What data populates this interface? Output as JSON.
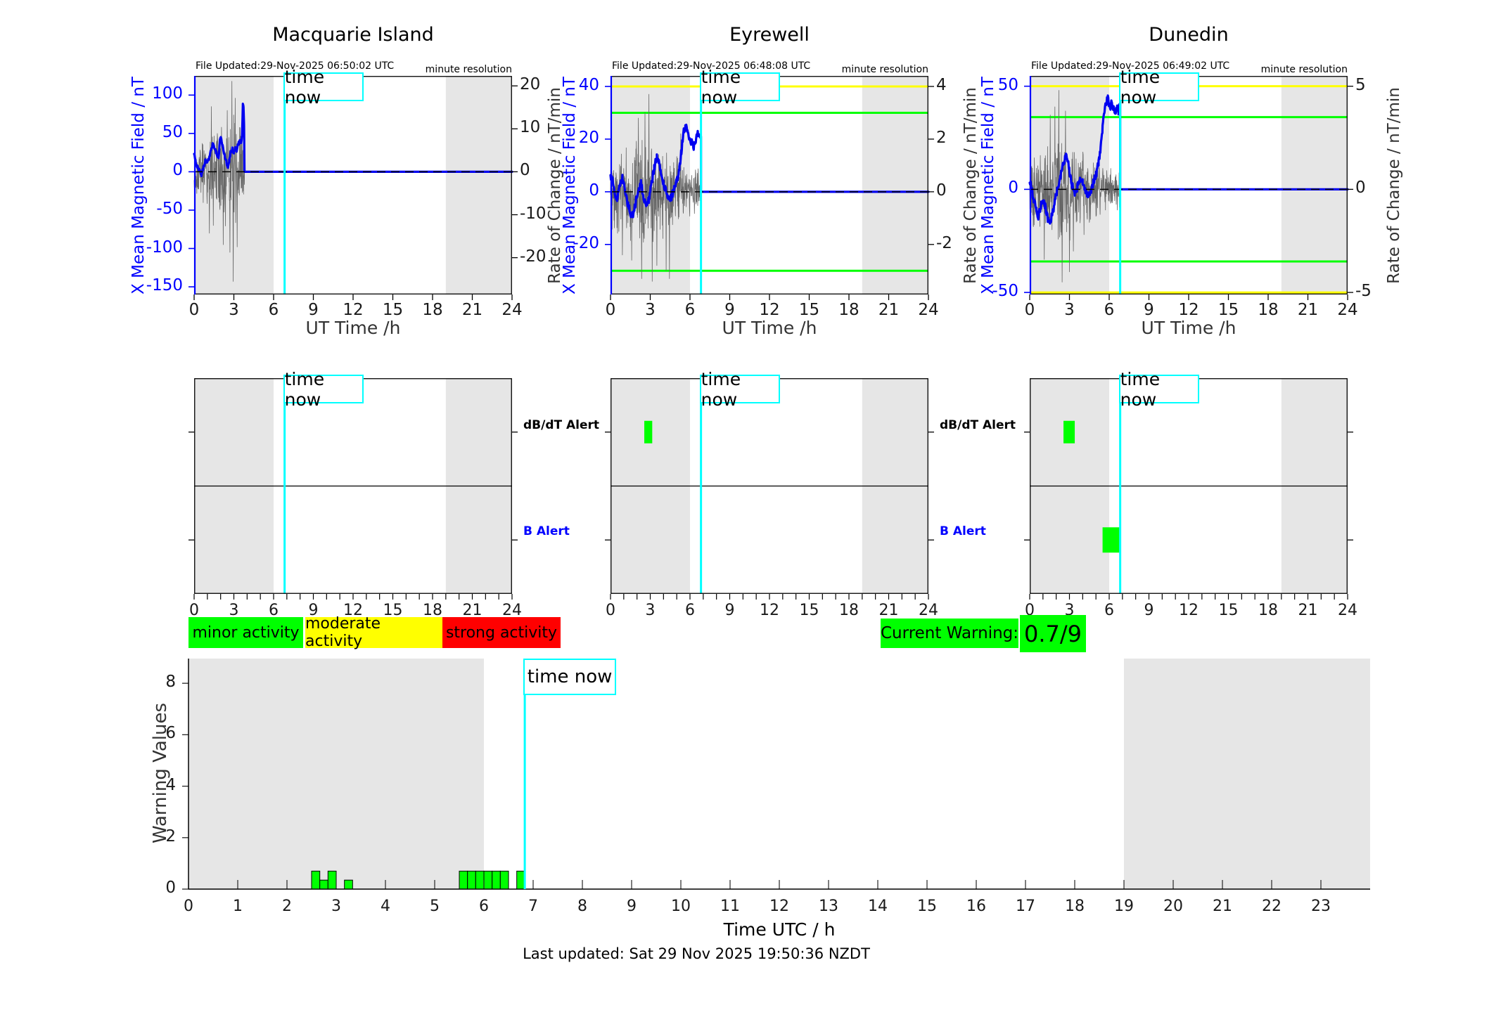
{
  "page": {
    "last_updated": "Last updated: Sat 29 Nov 2025 19:50:36 NZDT"
  },
  "time_now_label": "time now",
  "alert_labels": {
    "dbdt": "dB/dT Alert",
    "b": "B Alert"
  },
  "activity_legend": [
    {
      "label": "minor activity",
      "color": "#00ff00"
    },
    {
      "label": "moderate activity",
      "color": "#ffff00"
    },
    {
      "label": "strong activity",
      "color": "#ff0000"
    }
  ],
  "current_warning": {
    "label": "Current Warning:",
    "value": "0.7/9"
  },
  "colors": {
    "blue": "#0000ff",
    "curve": "#0000f0",
    "noise": "#666666",
    "shade": "#e6e6e6",
    "cyan": "#00ffff",
    "green": "#00ff00",
    "yellow": "#ffff00",
    "red": "#ff0000",
    "tick": "#1a1a1a"
  },
  "chart_data": {
    "type": "line",
    "time_now_hours": 6.83,
    "shaded_hours": [
      [
        0,
        6
      ],
      [
        19,
        24
      ]
    ],
    "stations": [
      {
        "name": "Macquarie Island",
        "file_updated": "File Updated:29-Nov-2025 06:50:02 UTC",
        "resolution_note": "minute resolution",
        "x_label": "UT Time /h",
        "y_left_label": "X Mean Magnetic Field / nT",
        "y_right_label": "Rate of Change / nT/min",
        "x_ticks": [
          0,
          3,
          6,
          9,
          12,
          15,
          18,
          21,
          24
        ],
        "y_left_ticks": [
          100,
          50,
          0,
          -50,
          -100,
          -150
        ],
        "y_right_ticks": [
          20,
          10,
          0,
          -10,
          -20
        ],
        "right_ratio": 5.6,
        "ylim": [
          -160,
          125
        ],
        "thresholds": [],
        "data_end": 3.8,
        "seed": 11,
        "blue_jitter": 2.5,
        "blue": [
          [
            0,
            22
          ],
          [
            0.1,
            14
          ],
          [
            0.25,
            6
          ],
          [
            0.4,
            2
          ],
          [
            0.55,
            -4
          ],
          [
            0.7,
            6
          ],
          [
            0.85,
            14
          ],
          [
            1.0,
            12
          ],
          [
            1.15,
            20
          ],
          [
            1.3,
            30
          ],
          [
            1.45,
            38
          ],
          [
            1.55,
            30
          ],
          [
            1.7,
            24
          ],
          [
            1.85,
            18
          ],
          [
            1.95,
            42
          ],
          [
            2.05,
            44
          ],
          [
            2.15,
            34
          ],
          [
            2.3,
            22
          ],
          [
            2.45,
            12
          ],
          [
            2.55,
            6
          ],
          [
            2.65,
            14
          ],
          [
            2.75,
            26
          ],
          [
            2.9,
            30
          ],
          [
            3.0,
            24
          ],
          [
            3.1,
            30
          ],
          [
            3.2,
            26
          ],
          [
            3.3,
            34
          ],
          [
            3.45,
            40
          ],
          [
            3.55,
            36
          ],
          [
            3.62,
            48
          ],
          [
            3.68,
            90
          ],
          [
            3.73,
            86
          ],
          [
            3.77,
            60
          ],
          [
            3.8,
            0
          ],
          [
            24,
            0
          ]
        ],
        "gray_amp": [
          [
            0,
            30
          ],
          [
            0.5,
            35
          ],
          [
            1,
            40
          ],
          [
            1.5,
            45
          ],
          [
            2,
            50
          ],
          [
            2.5,
            55
          ],
          [
            3,
            60
          ],
          [
            3.4,
            55
          ],
          [
            3.8,
            40
          ]
        ],
        "gray_spikes": [
          [
            1.15,
            -80
          ],
          [
            1.3,
            85
          ],
          [
            1.45,
            -70
          ],
          [
            2.2,
            -95
          ],
          [
            2.5,
            80
          ],
          [
            2.7,
            -105
          ],
          [
            2.85,
            118
          ],
          [
            2.95,
            -143
          ],
          [
            3.1,
            96
          ],
          [
            3.25,
            -98
          ]
        ],
        "alert_dbdt": [],
        "alert_b": []
      },
      {
        "name": "Eyrewell",
        "file_updated": "File Updated:29-Nov-2025 06:48:08 UTC",
        "resolution_note": "minute resolution",
        "x_label": "UT Time /h",
        "y_left_label": "X Mean Magnetic Field / nT",
        "y_right_label": "Rate of Change / nT/min",
        "x_ticks": [
          0,
          3,
          6,
          9,
          12,
          15,
          18,
          21,
          24
        ],
        "y_left_ticks": [
          40,
          20,
          0,
          -20
        ],
        "y_right_ticks": [
          4,
          2,
          0,
          -2
        ],
        "right_ratio": 10,
        "ylim": [
          -39,
          44
        ],
        "thresholds": [
          [
            40,
            "#ffff00"
          ],
          [
            30,
            "#00ff00"
          ],
          [
            -30,
            "#00ff00"
          ]
        ],
        "data_end": 6.83,
        "seed": 22,
        "blue_jitter": 1.5,
        "blue": [
          [
            0,
            6
          ],
          [
            0.15,
            4
          ],
          [
            0.3,
            0
          ],
          [
            0.5,
            -3
          ],
          [
            0.7,
            3
          ],
          [
            0.9,
            5
          ],
          [
            1.1,
            0
          ],
          [
            1.3,
            -5
          ],
          [
            1.5,
            -8
          ],
          [
            1.7,
            -9
          ],
          [
            1.9,
            -4
          ],
          [
            2.1,
            1
          ],
          [
            2.3,
            3
          ],
          [
            2.5,
            -2
          ],
          [
            2.7,
            -6
          ],
          [
            2.9,
            -3
          ],
          [
            3.1,
            3
          ],
          [
            3.3,
            9
          ],
          [
            3.5,
            13
          ],
          [
            3.65,
            11
          ],
          [
            3.8,
            7
          ],
          [
            4.0,
            3
          ],
          [
            4.2,
            0
          ],
          [
            4.4,
            -3
          ],
          [
            4.6,
            -2
          ],
          [
            4.8,
            1
          ],
          [
            5.0,
            4
          ],
          [
            5.2,
            9
          ],
          [
            5.35,
            15
          ],
          [
            5.5,
            22
          ],
          [
            5.65,
            25
          ],
          [
            5.8,
            23
          ],
          [
            5.95,
            21
          ],
          [
            6.1,
            19
          ],
          [
            6.25,
            17
          ],
          [
            6.4,
            18
          ],
          [
            6.55,
            22
          ],
          [
            6.7,
            21
          ],
          [
            6.83,
            21
          ],
          [
            6.83,
            0
          ],
          [
            24,
            0
          ]
        ],
        "gray_amp": [
          [
            0,
            12
          ],
          [
            1,
            15
          ],
          [
            2,
            16
          ],
          [
            2.5,
            18
          ],
          [
            3,
            16
          ],
          [
            4,
            14
          ],
          [
            4.5,
            15
          ],
          [
            5,
            10
          ],
          [
            5.5,
            8
          ],
          [
            6,
            7
          ],
          [
            6.83,
            8
          ]
        ],
        "gray_spikes": [
          [
            0.9,
            -24
          ],
          [
            1.6,
            -26
          ],
          [
            2.1,
            28
          ],
          [
            2.35,
            -33
          ],
          [
            2.6,
            30
          ],
          [
            2.9,
            37
          ],
          [
            3.15,
            -34
          ],
          [
            3.5,
            -28
          ],
          [
            4.2,
            -30
          ],
          [
            4.45,
            -33
          ],
          [
            5.3,
            22
          ]
        ],
        "alert_dbdt": [
          [
            2.55,
            3.15
          ]
        ],
        "alert_b": []
      },
      {
        "name": "Dunedin",
        "file_updated": "File Updated:29-Nov-2025 06:49:02 UTC",
        "resolution_note": "minute resolution",
        "x_label": "UT Time /h",
        "y_left_label": "X Mean Magnetic Field / nT",
        "y_right_label": "Rate of Change / nT/min",
        "x_ticks": [
          0,
          3,
          6,
          9,
          12,
          15,
          18,
          21,
          24
        ],
        "y_left_ticks": [
          50,
          0,
          -50
        ],
        "y_right_ticks": [
          5,
          0,
          -5
        ],
        "right_ratio": 10,
        "ylim": [
          -51,
          55
        ],
        "thresholds": [
          [
            50,
            "#ffff00"
          ],
          [
            35,
            "#00ff00"
          ],
          [
            -35,
            "#00ff00"
          ],
          [
            -50,
            "#ffff00"
          ]
        ],
        "data_end": 6.83,
        "seed": 33,
        "blue_jitter": 1.8,
        "blue": [
          [
            0,
            4
          ],
          [
            0.15,
            0
          ],
          [
            0.3,
            -5
          ],
          [
            0.5,
            -10
          ],
          [
            0.65,
            -13
          ],
          [
            0.8,
            -9
          ],
          [
            1.0,
            -5
          ],
          [
            1.2,
            -9
          ],
          [
            1.4,
            -15
          ],
          [
            1.55,
            -16
          ],
          [
            1.7,
            -12
          ],
          [
            1.9,
            -6
          ],
          [
            2.1,
            0
          ],
          [
            2.3,
            6
          ],
          [
            2.5,
            12
          ],
          [
            2.7,
            16
          ],
          [
            2.85,
            15
          ],
          [
            3.0,
            9
          ],
          [
            3.2,
            2
          ],
          [
            3.4,
            -2
          ],
          [
            3.6,
            1
          ],
          [
            3.8,
            5
          ],
          [
            4.0,
            4
          ],
          [
            4.2,
            -1
          ],
          [
            4.4,
            -4
          ],
          [
            4.6,
            -1
          ],
          [
            4.8,
            3
          ],
          [
            5.0,
            7
          ],
          [
            5.2,
            13
          ],
          [
            5.35,
            20
          ],
          [
            5.5,
            30
          ],
          [
            5.65,
            38
          ],
          [
            5.8,
            43
          ],
          [
            5.9,
            44
          ],
          [
            6.0,
            41
          ],
          [
            6.1,
            40
          ],
          [
            6.2,
            42
          ],
          [
            6.3,
            39
          ],
          [
            6.45,
            38
          ],
          [
            6.6,
            40
          ],
          [
            6.7,
            38
          ],
          [
            6.83,
            42
          ],
          [
            6.83,
            0
          ],
          [
            24,
            0
          ]
        ],
        "gray_amp": [
          [
            0,
            15
          ],
          [
            0.8,
            18
          ],
          [
            1.5,
            20
          ],
          [
            2,
            22
          ],
          [
            2.5,
            24
          ],
          [
            3,
            22
          ],
          [
            3.5,
            18
          ],
          [
            4,
            15
          ],
          [
            4.5,
            14
          ],
          [
            5,
            12
          ],
          [
            5.5,
            10
          ],
          [
            6,
            8
          ],
          [
            6.83,
            8
          ]
        ],
        "gray_spikes": [
          [
            1.1,
            -34
          ],
          [
            1.55,
            36
          ],
          [
            1.9,
            40
          ],
          [
            2.2,
            48
          ],
          [
            2.45,
            -45
          ],
          [
            2.7,
            38
          ],
          [
            3.0,
            -40
          ],
          [
            3.3,
            -30
          ],
          [
            4.1,
            -22
          ]
        ],
        "alert_dbdt": [
          [
            2.55,
            3.4
          ]
        ],
        "alert_b": [
          [
            5.5,
            6.9
          ]
        ]
      }
    ],
    "warning_chart": {
      "type": "bar",
      "y_label": "Warning Values",
      "x_label": "Time UTC / h",
      "y_ticks": [
        0,
        2,
        4,
        6,
        8
      ],
      "x_ticks": [
        0,
        1,
        2,
        3,
        4,
        5,
        6,
        7,
        8,
        9,
        10,
        11,
        12,
        13,
        14,
        15,
        16,
        17,
        18,
        19,
        20,
        21,
        22,
        23
      ],
      "ylim": [
        0,
        8.96
      ],
      "xlim": [
        0,
        24
      ],
      "bars": [
        [
          2.5,
          2.667,
          0.7
        ],
        [
          2.667,
          2.833,
          0.35
        ],
        [
          2.833,
          3.0,
          0.7
        ],
        [
          3.167,
          3.333,
          0.35
        ],
        [
          5.5,
          5.667,
          0.7
        ],
        [
          5.667,
          5.833,
          0.7
        ],
        [
          5.833,
          6.0,
          0.7
        ],
        [
          6.0,
          6.167,
          0.7
        ],
        [
          6.167,
          6.333,
          0.7
        ],
        [
          6.333,
          6.5,
          0.7
        ],
        [
          6.667,
          6.833,
          0.7
        ]
      ]
    }
  }
}
